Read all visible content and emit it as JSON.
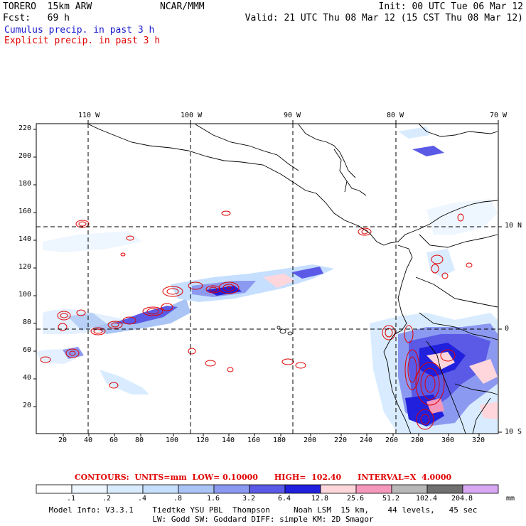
{
  "header": {
    "title": "TORERO  15km ARW",
    "org": "NCAR/MMM",
    "init": "Init: 00 UTC Tue 06 Mar 12",
    "fcst": "Fcst:   69 h",
    "valid": "Valid: 21 UTC Thu 08 Mar 12 (15 CST Thu 08 Mar 12)",
    "cumulus_label": "Cumulus precip. in past 3 h",
    "explicit_label": "Explicit precip. in past 3 h"
  },
  "map": {
    "lon_labels": [
      "110 W",
      "100 W",
      "90 W",
      "80 W",
      "70 W"
    ],
    "lat_labels": [
      "10 N",
      "0",
      "10 S"
    ],
    "y_ticks": [
      "220",
      "200",
      "180",
      "160",
      "140",
      "120",
      "100",
      "80",
      "60",
      "40",
      "20"
    ],
    "x_ticks": [
      "20",
      "40",
      "60",
      "80",
      "100",
      "120",
      "140",
      "160",
      "180",
      "200",
      "220",
      "240",
      "260",
      "280",
      "300",
      "320"
    ]
  },
  "contour_info": {
    "label": "CONTOURS:  UNITS=mm  LOW= 0.10000      HIGH=  102.40      INTERVAL=X  4.0000"
  },
  "colorbar": {
    "units": "mm",
    "labels": [
      ".1",
      ".2",
      ".4",
      ".8",
      "1.6",
      "3.2",
      "6.4",
      "12.8",
      "25.6",
      "51.2",
      "102.4",
      "204.8"
    ],
    "colors": [
      "#ffffff",
      "#eef6ff",
      "#d9ecff",
      "#c6dfff",
      "#a9c4f5",
      "#8c99f0",
      "#5a5ae6",
      "#2020dd",
      "#ffd6dc",
      "#f598bc",
      "#b8b8b8",
      "#707070",
      "#d8a8f5"
    ]
  },
  "model_info": {
    "line1": "Model Info: V3.3.1    Tiedtke YSU PBL  Thompson     Noah LSM  15 km,    44 levels,   45 sec",
    "line2": "LW: Godd SW: Goddard DIFF: simple KM: 2D Smagor"
  }
}
